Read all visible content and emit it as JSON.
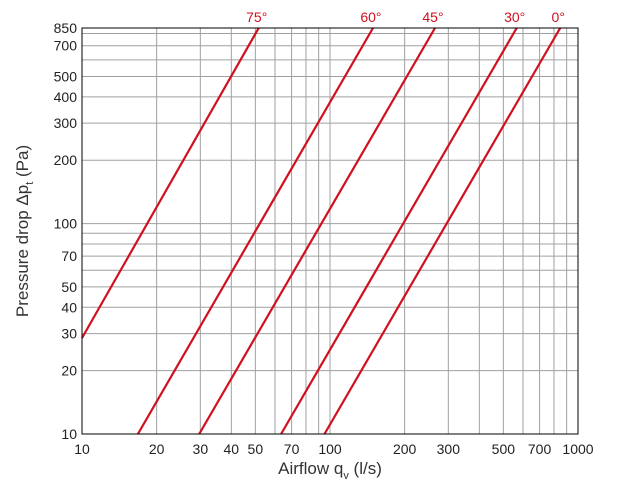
{
  "chart_data": {
    "type": "line",
    "title": "",
    "xlabel": {
      "main": "Airflow q",
      "sub": "v",
      "unit": " (l/s)"
    },
    "ylabel": {
      "main": "Pressure drop Δp",
      "sub": "t",
      "unit": " (Pa)"
    },
    "xscale": "log",
    "yscale": "log",
    "xlim": [
      10,
      1000
    ],
    "ylim": [
      10,
      850
    ],
    "grid": true,
    "x_ticks": [
      10,
      20,
      30,
      40,
      50,
      70,
      100,
      200,
      300,
      500,
      700,
      1000
    ],
    "x_tick_labels": [
      "10",
      "20",
      "30",
      "40",
      "50",
      "70",
      "100",
      "200",
      "300",
      "500",
      "700",
      "1000"
    ],
    "x_grid": [
      10,
      20,
      30,
      40,
      50,
      60,
      70,
      80,
      90,
      100,
      200,
      300,
      400,
      500,
      600,
      700,
      800,
      900,
      1000
    ],
    "y_ticks": [
      10,
      20,
      30,
      40,
      50,
      70,
      100,
      200,
      300,
      400,
      500,
      700,
      850
    ],
    "y_tick_labels": [
      "10",
      "20",
      "30",
      "40",
      "50",
      "70",
      "100",
      "200",
      "300",
      "400",
      "500",
      "700",
      "850"
    ],
    "y_grid": [
      10,
      20,
      30,
      40,
      50,
      60,
      70,
      80,
      90,
      100,
      200,
      300,
      400,
      500,
      600,
      700,
      800,
      850
    ],
    "series": [
      {
        "name": "75°",
        "color": "#d0101e",
        "x": [
          10,
          51.6
        ],
        "y": [
          28.6,
          850
        ]
      },
      {
        "name": "60°",
        "color": "#d0101e",
        "x": [
          16.8,
          149
        ],
        "y": [
          10,
          850
        ]
      },
      {
        "name": "45°",
        "color": "#d0101e",
        "x": [
          29.7,
          265
        ],
        "y": [
          10,
          850
        ]
      },
      {
        "name": "30°",
        "color": "#d0101e",
        "x": [
          63.5,
          566
        ],
        "y": [
          10,
          850
        ]
      },
      {
        "name": "0°",
        "color": "#d0101e",
        "x": [
          95,
          848
        ],
        "y": [
          10,
          850
        ]
      }
    ]
  },
  "colors": {
    "line": "#d0101e",
    "grid": "#a0a0a0",
    "frame": "#000000",
    "text": "#222222"
  }
}
